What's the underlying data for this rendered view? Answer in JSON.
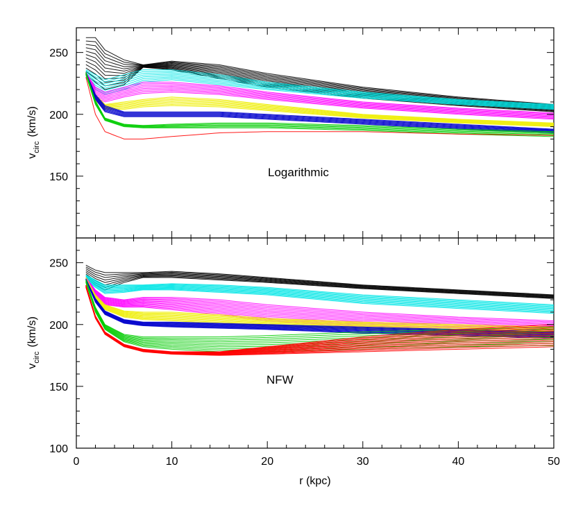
{
  "chart_data": [
    {
      "type": "line",
      "panel": "top",
      "annotation": "Logarithmic",
      "xlabel": "",
      "ylabel_main": "v",
      "ylabel_sub": "circ",
      "ylabel_units": "(km/s)",
      "xlim": [
        0,
        50
      ],
      "ylim": [
        100,
        270
      ],
      "yticks": [
        150,
        200,
        250
      ],
      "yticks_shown": [
        "150",
        "200",
        "250"
      ],
      "xticks": [
        0,
        10,
        20,
        30,
        40,
        50
      ],
      "xticks_shown": [],
      "series_groups": [
        {
          "color": "#000000",
          "count": 12,
          "r": [
            1,
            2,
            3,
            5,
            7,
            10,
            15,
            20,
            30,
            40,
            50
          ],
          "lo": [
            232,
            226,
            220,
            224,
            238,
            236,
            229,
            222,
            213,
            207,
            202
          ],
          "hi": [
            262,
            262,
            252,
            244,
            240,
            243,
            240,
            233,
            222,
            214,
            208
          ]
        },
        {
          "color": "#00e5e5",
          "count": 8,
          "r": [
            1,
            2,
            3,
            5,
            7,
            10,
            15,
            20,
            30,
            40,
            50
          ],
          "lo": [
            230,
            220,
            216,
            220,
            226,
            228,
            224,
            220,
            213,
            208,
            204
          ],
          "hi": [
            236,
            232,
            228,
            232,
            236,
            236,
            232,
            226,
            218,
            212,
            208
          ]
        },
        {
          "color": "#ff00ff",
          "count": 8,
          "r": [
            1,
            2,
            3,
            5,
            7,
            10,
            15,
            20,
            30,
            40,
            50
          ],
          "lo": [
            232,
            214,
            210,
            214,
            217,
            218,
            216,
            212,
            205,
            200,
            196
          ],
          "hi": [
            234,
            222,
            218,
            222,
            226,
            226,
            223,
            218,
            210,
            205,
            201
          ]
        },
        {
          "color": "#eeee00",
          "count": 8,
          "r": [
            1,
            2,
            3,
            5,
            7,
            10,
            15,
            20,
            30,
            40,
            50
          ],
          "lo": [
            232,
            211,
            204,
            204,
            206,
            207,
            206,
            203,
            197,
            193,
            190
          ],
          "hi": [
            234,
            216,
            208,
            210,
            212,
            214,
            212,
            208,
            200,
            196,
            193
          ]
        },
        {
          "color": "#0000cc",
          "count": 8,
          "r": [
            1,
            2,
            3,
            5,
            7,
            10,
            15,
            20,
            30,
            40,
            50
          ],
          "lo": [
            232,
            212,
            202,
            198,
            198,
            198,
            198,
            196,
            192,
            188,
            185
          ],
          "hi": [
            234,
            216,
            207,
            202,
            202,
            202,
            202,
            200,
            196,
            192,
            188
          ]
        },
        {
          "color": "#00cc00",
          "count": 6,
          "r": [
            1,
            2,
            3,
            5,
            7,
            10,
            15,
            20,
            30,
            40,
            50
          ],
          "lo": [
            232,
            208,
            195,
            190,
            189,
            189,
            189,
            189,
            187,
            184,
            182
          ],
          "hi": [
            234,
            211,
            197,
            192,
            191,
            192,
            193,
            193,
            191,
            188,
            186
          ]
        },
        {
          "color": "#ff0000",
          "count": 1,
          "r": [
            1,
            2,
            3,
            5,
            7,
            10,
            15,
            20,
            30,
            40,
            50
          ],
          "lo": [
            230,
            200,
            186,
            180,
            180,
            182,
            185,
            186,
            186,
            184,
            183
          ],
          "hi": [
            230,
            200,
            186,
            180,
            180,
            182,
            185,
            186,
            186,
            184,
            183
          ]
        }
      ]
    },
    {
      "type": "line",
      "panel": "bottom",
      "annotation": "NFW",
      "xlabel": "r (kpc)",
      "ylabel_main": "v",
      "ylabel_sub": "circ",
      "ylabel_units": "(km/s)",
      "xlim": [
        0,
        50
      ],
      "ylim": [
        100,
        270
      ],
      "yticks": [
        100,
        150,
        200,
        250
      ],
      "yticks_shown": [
        "100",
        "150",
        "200",
        "250"
      ],
      "xticks": [
        0,
        10,
        20,
        30,
        40,
        50
      ],
      "xticks_shown": [
        "0",
        "10",
        "20",
        "30",
        "40",
        "50"
      ],
      "series_groups": [
        {
          "color": "#000000",
          "count": 8,
          "r": [
            1,
            2,
            3,
            5,
            7,
            10,
            15,
            20,
            30,
            40,
            50
          ],
          "lo": [
            238,
            232,
            228,
            234,
            238,
            238,
            236,
            234,
            229,
            225,
            221
          ],
          "hi": [
            248,
            244,
            242,
            242,
            242,
            243,
            241,
            238,
            232,
            228,
            224
          ]
        },
        {
          "color": "#00e5e5",
          "count": 10,
          "r": [
            1,
            2,
            3,
            5,
            7,
            10,
            15,
            20,
            30,
            40,
            50
          ],
          "lo": [
            236,
            230,
            225,
            226,
            228,
            228,
            226,
            224,
            217,
            213,
            209
          ],
          "hi": [
            240,
            236,
            232,
            232,
            232,
            233,
            232,
            230,
            224,
            220,
            216
          ]
        },
        {
          "color": "#ff00ff",
          "count": 12,
          "r": [
            1,
            2,
            3,
            5,
            7,
            10,
            15,
            20,
            30,
            40,
            50
          ],
          "lo": [
            236,
            222,
            216,
            214,
            214,
            212,
            208,
            203,
            198,
            195,
            192
          ],
          "hi": [
            238,
            228,
            222,
            220,
            222,
            222,
            220,
            216,
            210,
            206,
            203
          ]
        },
        {
          "color": "#eeee00",
          "count": 10,
          "r": [
            1,
            2,
            3,
            5,
            7,
            10,
            15,
            20,
            30,
            40,
            50
          ],
          "lo": [
            236,
            220,
            212,
            206,
            204,
            203,
            201,
            199,
            196,
            193,
            190
          ],
          "hi": [
            238,
            224,
            216,
            211,
            210,
            210,
            208,
            205,
            202,
            200,
            198
          ]
        },
        {
          "color": "#0000cc",
          "count": 10,
          "r": [
            1,
            2,
            3,
            5,
            7,
            10,
            15,
            20,
            30,
            40,
            50
          ],
          "lo": [
            236,
            218,
            208,
            201,
            199,
            198,
            197,
            196,
            193,
            191,
            189
          ],
          "hi": [
            237,
            221,
            211,
            204,
            202,
            202,
            201,
            200,
            198,
            196,
            194
          ]
        },
        {
          "color": "#00cc00",
          "count": 10,
          "r": [
            1,
            2,
            3,
            5,
            7,
            10,
            15,
            20,
            30,
            40,
            50
          ],
          "lo": [
            234,
            210,
            196,
            186,
            182,
            180,
            178,
            178,
            180,
            182,
            183
          ],
          "hi": [
            236,
            214,
            200,
            192,
            190,
            190,
            190,
            191,
            194,
            196,
            198
          ]
        },
        {
          "color": "#ff0000",
          "count": 14,
          "r": [
            1,
            2,
            3,
            5,
            7,
            10,
            15,
            20,
            30,
            40,
            50
          ],
          "lo": [
            230,
            205,
            192,
            182,
            178,
            176,
            175,
            176,
            178,
            180,
            182
          ],
          "hi": [
            232,
            207,
            194,
            184,
            180,
            178,
            178,
            182,
            190,
            196,
            200
          ]
        }
      ]
    }
  ]
}
